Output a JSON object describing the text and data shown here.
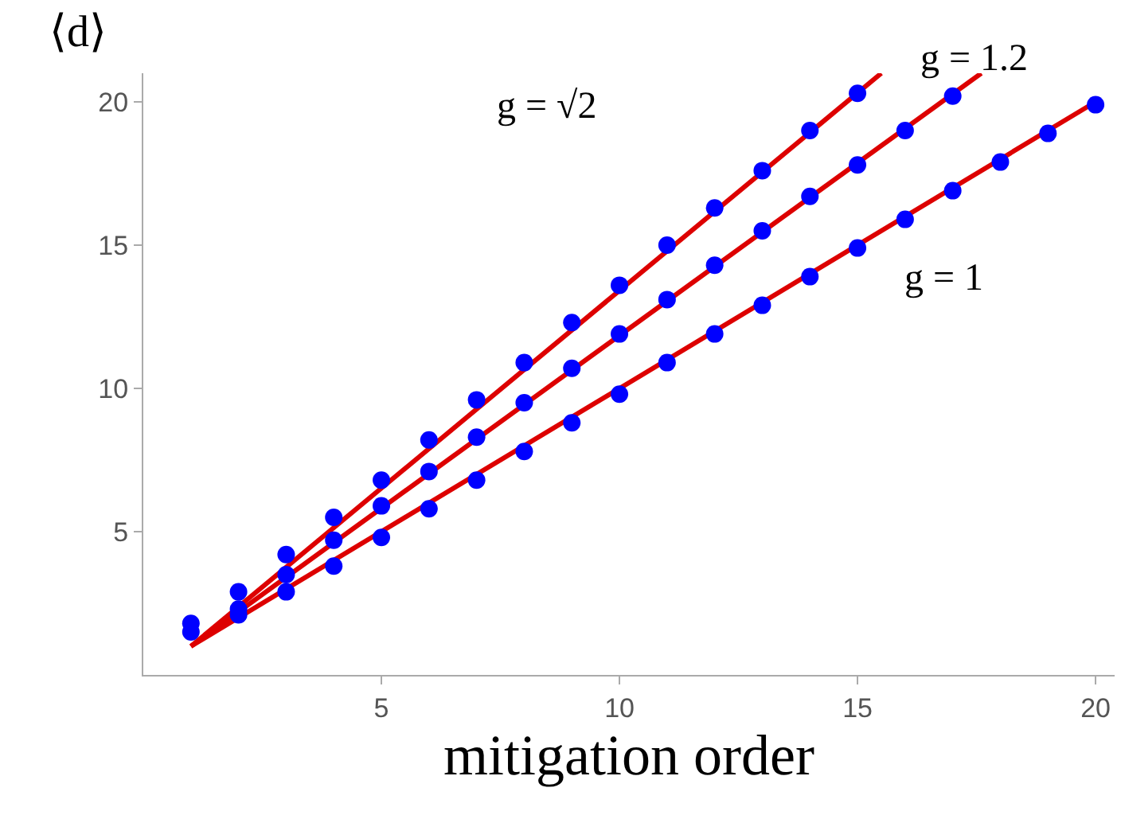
{
  "chart_data": {
    "type": "scatter",
    "xlabel": "mitigation order",
    "ylabel": "⟨d⟩",
    "x": [
      1,
      2,
      3,
      4,
      5,
      6,
      7,
      8,
      9,
      10,
      11,
      12,
      13,
      14,
      15,
      16,
      17,
      18,
      19,
      20
    ],
    "xlim": [
      0,
      20.4
    ],
    "ylim": [
      0,
      21
    ],
    "xticks": [
      5,
      10,
      15,
      20
    ],
    "yticks": [
      5,
      10,
      15,
      20
    ],
    "grid": false,
    "legend": false,
    "series": [
      {
        "type": "line",
        "color": "#dd0000",
        "x": [
          1,
          20
        ],
        "values": [
          1,
          20
        ]
      },
      {
        "type": "line",
        "color": "#dd0000",
        "x": [
          1,
          17.6
        ],
        "values": [
          1,
          21
        ]
      },
      {
        "type": "line",
        "color": "#dd0000",
        "x": [
          1,
          15.5
        ],
        "values": [
          1,
          21
        ]
      },
      {
        "color": "#0000ff",
        "marker": "circle",
        "values": [
          null,
          2.1,
          2.9,
          3.8,
          4.8,
          5.8,
          6.8,
          7.8,
          8.8,
          9.8,
          10.9,
          11.9,
          12.9,
          13.9,
          14.9,
          15.9,
          16.9,
          17.9,
          18.9,
          19.9
        ]
      },
      {
        "color": "#0000ff",
        "marker": "circle",
        "values": [
          1.5,
          2.3,
          3.5,
          4.7,
          5.9,
          7.1,
          8.3,
          9.5,
          10.7,
          11.9,
          13.1,
          14.3,
          15.5,
          16.7,
          17.8,
          19.0,
          20.2,
          null,
          null,
          null
        ]
      },
      {
        "color": "#0000ff",
        "marker": "circle",
        "values": [
          1.8,
          2.9,
          4.2,
          5.5,
          6.8,
          8.2,
          9.6,
          10.9,
          12.3,
          13.6,
          15.0,
          16.3,
          17.6,
          19.0,
          20.3,
          null,
          null,
          null,
          null,
          null
        ]
      }
    ],
    "annotations": [
      "g = 1",
      "g = 1.2",
      "g = √2"
    ]
  }
}
